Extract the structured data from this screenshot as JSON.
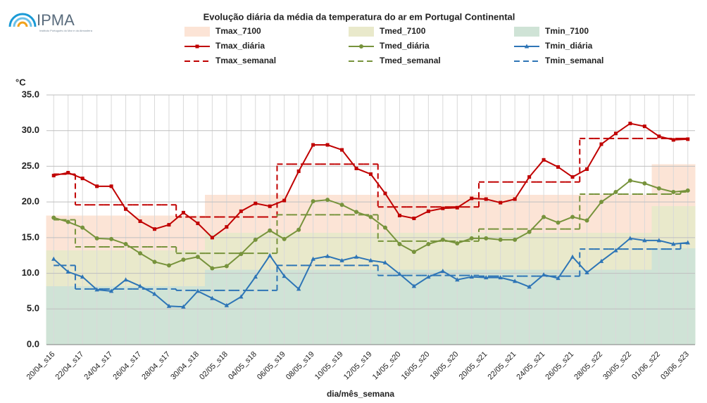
{
  "chart_data": {
    "type": "line",
    "logo_text": "IPMA",
    "logo_subtext": "Instituto Português do Mar e da Atmosfera",
    "title": "Evolução diária da média da temperatura do ar em Portugal Continental",
    "y_label": "°C",
    "x_label": "dia/mês_semana",
    "grid": true,
    "ylim": [
      0,
      35
    ],
    "yticks": [
      {
        "value": 0,
        "label": "0.0"
      },
      {
        "value": 5,
        "label": "5.0"
      },
      {
        "value": 10,
        "label": "10.0"
      },
      {
        "value": 15,
        "label": "15.0"
      },
      {
        "value": 20,
        "label": "20.0"
      },
      {
        "value": 25,
        "label": "25.0"
      },
      {
        "value": 30,
        "label": "30.0"
      },
      {
        "value": 35,
        "label": "35.0"
      }
    ],
    "categories": [
      "20/04_s16",
      null,
      "22/04_s17",
      null,
      "24/04_s17",
      null,
      "26/04_s17",
      null,
      "28/04_s17",
      null,
      "30/04_s18",
      null,
      "02/05_s18",
      null,
      "04/05_s18",
      null,
      "06/05_s19",
      null,
      "08/05_s19",
      null,
      "10/05_s19",
      null,
      "12/05_s19",
      null,
      "14/05_s20",
      null,
      "16/05_s20",
      null,
      "18/05_s20",
      null,
      "20/05_s21",
      null,
      "22/05_s21",
      null,
      "24/05_s21",
      null,
      "26/05_s21",
      null,
      "28/05_s22",
      null,
      "30/05_s22",
      null,
      "01/06_s22",
      null,
      "03/06_s23"
    ],
    "series": [
      {
        "name": "Tmax_7100",
        "style": "area",
        "color": "#fce4d6",
        "values": [
          18.1,
          18.1,
          18.1,
          18.1,
          18.1,
          18.1,
          18.1,
          18.1,
          18.1,
          18.1,
          18.1,
          21,
          21,
          21,
          21,
          21,
          21,
          21,
          21,
          21,
          21,
          21,
          21,
          21,
          21,
          21,
          21,
          21,
          21,
          21,
          21,
          21,
          21,
          21,
          21,
          21,
          21,
          21,
          21,
          21,
          21,
          21,
          25.3,
          25.3,
          25.3
        ]
      },
      {
        "name": "Tmed_7100",
        "style": "area",
        "color": "#e9e9cb",
        "values": [
          13.2,
          13.2,
          13.2,
          13.2,
          13.2,
          13.2,
          13.2,
          13.2,
          13.2,
          13.2,
          13.2,
          15.7,
          15.7,
          15.7,
          15.7,
          15.7,
          15.7,
          15.7,
          15.7,
          15.7,
          15.7,
          15.7,
          15.7,
          15.7,
          15.7,
          15.7,
          15.7,
          15.7,
          15.7,
          15.7,
          15.7,
          15.7,
          15.7,
          15.7,
          15.7,
          15.7,
          15.7,
          15.7,
          15.7,
          15.7,
          15.7,
          15.7,
          19.4,
          19.4,
          19.4
        ]
      },
      {
        "name": "Tmin_7100",
        "style": "area",
        "color": "#cfe3d6",
        "values": [
          8.2,
          8.2,
          8.2,
          8.2,
          8.2,
          8.2,
          8.2,
          8.2,
          8.2,
          8.2,
          8.2,
          10.5,
          10.5,
          10.5,
          10.5,
          10.5,
          10.5,
          10.5,
          10.5,
          10.5,
          10.5,
          10.5,
          10.5,
          10.5,
          10.5,
          10.5,
          10.5,
          10.5,
          10.5,
          10.5,
          10.5,
          10.5,
          10.5,
          10.5,
          10.5,
          10.5,
          10.5,
          10.5,
          10.5,
          10.5,
          10.5,
          10.5,
          13.5,
          13.5,
          13.5
        ]
      },
      {
        "name": "Tmax_diária",
        "style": "line",
        "marker": "square",
        "color": "#c00000",
        "values": [
          23.7,
          24.1,
          23.3,
          22.2,
          22.2,
          19.0,
          17.3,
          16.2,
          16.8,
          18.5,
          17.0,
          15.0,
          16.5,
          18.7,
          19.8,
          19.4,
          20.2,
          24.3,
          28.0,
          28.0,
          27.3,
          24.7,
          23.9,
          21.2,
          18.1,
          17.7,
          18.7,
          19.1,
          19.2,
          20.5,
          20.4,
          19.9,
          20.4,
          23.5,
          25.9,
          24.9,
          23.5,
          24.6,
          28.1,
          29.6,
          31.0,
          30.6,
          29.2,
          28.7,
          28.8
        ]
      },
      {
        "name": "Tmed_diária",
        "style": "line",
        "marker": "circle",
        "color": "#77933c",
        "values": [
          17.8,
          17.2,
          16.4,
          14.9,
          14.8,
          14.1,
          12.8,
          11.6,
          11.1,
          11.9,
          12.3,
          10.7,
          11.0,
          12.7,
          14.7,
          16.0,
          14.8,
          16.1,
          20.1,
          20.3,
          19.6,
          18.6,
          17.9,
          16.4,
          14.1,
          13.0,
          14.1,
          14.7,
          14.2,
          14.9,
          14.9,
          14.7,
          14.7,
          15.8,
          17.9,
          17.1,
          17.9,
          17.4,
          20.0,
          21.4,
          23.0,
          22.6,
          21.9,
          21.4,
          21.6
        ]
      },
      {
        "name": "Tmin_diária",
        "style": "line",
        "marker": "triangle",
        "color": "#2e75b6",
        "values": [
          12.0,
          10.2,
          9.5,
          7.7,
          7.5,
          9.1,
          8.2,
          7.1,
          5.4,
          5.3,
          7.5,
          6.5,
          5.5,
          6.7,
          9.5,
          12.5,
          9.6,
          7.8,
          12.0,
          12.4,
          11.8,
          12.3,
          11.8,
          11.5,
          9.9,
          8.2,
          9.5,
          10.3,
          9.1,
          9.5,
          9.4,
          9.4,
          8.9,
          8.1,
          9.8,
          9.3,
          12.3,
          10.1,
          11.7,
          13.2,
          14.9,
          14.6,
          14.6,
          14.1,
          14.3
        ]
      },
      {
        "name": "Tmax_semanal",
        "style": "dashed",
        "color": "#c00000",
        "values": [
          23.9,
          23.9,
          19.6,
          19.6,
          19.6,
          19.6,
          19.6,
          19.6,
          19.6,
          17.9,
          17.9,
          17.9,
          17.9,
          17.9,
          17.9,
          17.9,
          25.3,
          25.3,
          25.3,
          25.3,
          25.3,
          25.3,
          25.3,
          19.3,
          19.3,
          19.3,
          19.3,
          19.3,
          19.3,
          19.3,
          22.8,
          22.8,
          22.8,
          22.8,
          22.8,
          22.8,
          22.8,
          28.9,
          28.9,
          28.9,
          28.9,
          28.9,
          28.9,
          28.9,
          28.9
        ]
      },
      {
        "name": "Tmed_semanal",
        "style": "dashed",
        "color": "#77933c",
        "values": [
          17.5,
          17.5,
          13.7,
          13.7,
          13.7,
          13.7,
          13.7,
          13.7,
          13.7,
          12.8,
          12.8,
          12.8,
          12.8,
          12.8,
          12.8,
          12.8,
          18.2,
          18.2,
          18.2,
          18.2,
          18.2,
          18.2,
          18.2,
          14.5,
          14.5,
          14.5,
          14.5,
          14.5,
          14.5,
          14.5,
          16.2,
          16.2,
          16.2,
          16.2,
          16.2,
          16.2,
          16.2,
          21.1,
          21.1,
          21.1,
          21.1,
          21.1,
          21.1,
          21.1,
          21.4
        ]
      },
      {
        "name": "Tmin_semanal",
        "style": "dashed",
        "color": "#2e75b6",
        "values": [
          11.1,
          11.1,
          7.8,
          7.8,
          7.8,
          7.8,
          7.8,
          7.8,
          7.8,
          7.6,
          7.6,
          7.6,
          7.6,
          7.6,
          7.6,
          7.6,
          11.1,
          11.1,
          11.1,
          11.1,
          11.1,
          11.1,
          11.1,
          9.7,
          9.7,
          9.7,
          9.7,
          9.7,
          9.7,
          9.7,
          9.6,
          9.6,
          9.6,
          9.6,
          9.6,
          9.6,
          9.6,
          13.4,
          13.4,
          13.4,
          13.4,
          13.4,
          13.4,
          13.4,
          14.2
        ]
      }
    ]
  }
}
